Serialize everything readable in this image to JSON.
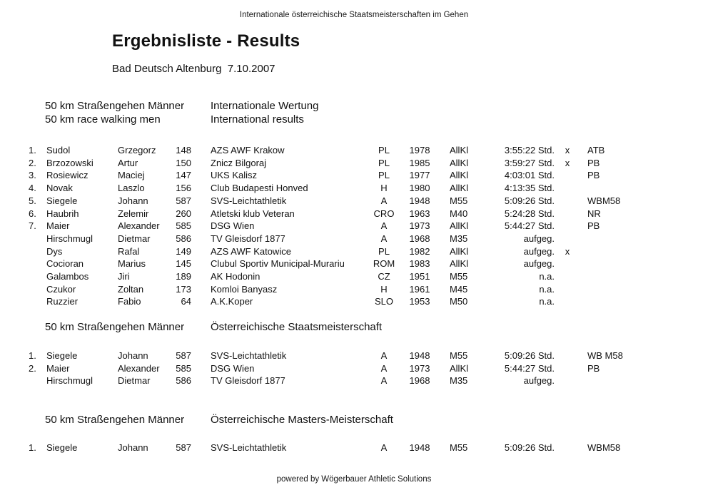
{
  "page": {
    "header": "Internationale österreichische Staatsmeisterschaften im Gehen",
    "title": "Ergebnisliste - Results",
    "subtitle": "Bad Deutsch Altenburg  7.10.2007",
    "footer": "powered by Wögerbauer Athletic Solutions"
  },
  "sections": [
    {
      "heading_left": [
        "50 km Straßengehen Männer",
        "50 km race walking men"
      ],
      "heading_right": [
        "Internationale Wertung",
        "International results"
      ],
      "rows": [
        {
          "pos": "1.",
          "lastname": "Sudol",
          "firstname": "Grzegorz",
          "bib": "148",
          "club": "AZS AWF Krakow",
          "nat": "PL",
          "year": "1978",
          "class": "AllKl",
          "result": "3:55:22 Std.",
          "mark": "x",
          "note": "ATB"
        },
        {
          "pos": "2.",
          "lastname": "Brzozowski",
          "firstname": "Artur",
          "bib": "150",
          "club": "Znicz Bilgoraj",
          "nat": "PL",
          "year": "1985",
          "class": "AllKl",
          "result": "3:59:27 Std.",
          "mark": "x",
          "note": "PB"
        },
        {
          "pos": "3.",
          "lastname": "Rosiewicz",
          "firstname": "Maciej",
          "bib": "147",
          "club": "UKS Kalisz",
          "nat": "PL",
          "year": "1977",
          "class": "AllKl",
          "result": "4:03:01 Std.",
          "mark": "",
          "note": "PB"
        },
        {
          "pos": "4.",
          "lastname": "Novak",
          "firstname": "Laszlo",
          "bib": "156",
          "club": "Club Budapesti Honved",
          "nat": "H",
          "year": "1980",
          "class": "AllKl",
          "result": "4:13:35 Std.",
          "mark": "",
          "note": ""
        },
        {
          "pos": "5.",
          "lastname": "Siegele",
          "firstname": "Johann",
          "bib": "587",
          "club": "SVS-Leichtathletik",
          "nat": "A",
          "year": "1948",
          "class": "M55",
          "result": "5:09:26 Std.",
          "mark": "",
          "note": "WBM58"
        },
        {
          "pos": "6.",
          "lastname": "Haubrih",
          "firstname": "Zelemir",
          "bib": "260",
          "club": "Atletski klub Veteran",
          "nat": "CRO",
          "year": "1963",
          "class": "M40",
          "result": "5:24:28 Std.",
          "mark": "",
          "note": "NR"
        },
        {
          "pos": "7.",
          "lastname": "Maier",
          "firstname": "Alexander",
          "bib": "585",
          "club": "DSG Wien",
          "nat": "A",
          "year": "1973",
          "class": "AllKl",
          "result": "5:44:27 Std.",
          "mark": "",
          "note": "PB"
        },
        {
          "pos": "",
          "lastname": "Hirschmugl",
          "firstname": "Dietmar",
          "bib": "586",
          "club": "TV Gleisdorf 1877",
          "nat": "A",
          "year": "1968",
          "class": "M35",
          "result": "aufgeg.",
          "mark": "",
          "note": ""
        },
        {
          "pos": "",
          "lastname": "Dys",
          "firstname": "Rafal",
          "bib": "149",
          "club": "AZS AWF Katowice",
          "nat": "PL",
          "year": "1982",
          "class": "AllKl",
          "result": "aufgeg.",
          "mark": "x",
          "note": ""
        },
        {
          "pos": "",
          "lastname": "Cocioran",
          "firstname": "Marius",
          "bib": "145",
          "club": "Clubul Sportiv Municipal-Murariu",
          "nat": "ROM",
          "year": "1983",
          "class": "AllKl",
          "result": "aufgeg.",
          "mark": "",
          "note": ""
        },
        {
          "pos": "",
          "lastname": "Galambos",
          "firstname": "Jiri",
          "bib": "189",
          "club": "AK Hodonin",
          "nat": "CZ",
          "year": "1951",
          "class": "M55",
          "result": "n.a.",
          "mark": "",
          "note": ""
        },
        {
          "pos": "",
          "lastname": "Czukor",
          "firstname": "Zoltan",
          "bib": "173",
          "club": "Komloi Banyasz",
          "nat": "H",
          "year": "1961",
          "class": "M45",
          "result": "n.a.",
          "mark": "",
          "note": ""
        },
        {
          "pos": "",
          "lastname": "Ruzzier",
          "firstname": "Fabio",
          "bib": "64",
          "club": "A.K.Koper",
          "nat": "SLO",
          "year": "1953",
          "class": "M50",
          "result": "n.a.",
          "mark": "",
          "note": ""
        }
      ]
    },
    {
      "heading_left": [
        "50 km Straßengehen Männer"
      ],
      "heading_right": [
        "Österreichische Staatsmeisterschaft"
      ],
      "rows": [
        {
          "pos": "1.",
          "lastname": "Siegele",
          "firstname": "Johann",
          "bib": "587",
          "club": "SVS-Leichtathletik",
          "nat": "A",
          "year": "1948",
          "class": "M55",
          "result": "5:09:26 Std.",
          "mark": "",
          "note": "WB M58"
        },
        {
          "pos": "2.",
          "lastname": "Maier",
          "firstname": "Alexander",
          "bib": "585",
          "club": "DSG Wien",
          "nat": "A",
          "year": "1973",
          "class": "AllKl",
          "result": "5:44:27 Std.",
          "mark": "",
          "note": "PB"
        },
        {
          "pos": "",
          "lastname": "Hirschmugl",
          "firstname": "Dietmar",
          "bib": "586",
          "club": "TV Gleisdorf 1877",
          "nat": "A",
          "year": "1968",
          "class": "M35",
          "result": "aufgeg.",
          "mark": "",
          "note": ""
        }
      ]
    },
    {
      "heading_left": [
        "50 km Straßengehen Männer"
      ],
      "heading_right": [
        "Österreichische Masters-Meisterschaft"
      ],
      "rows": [
        {
          "pos": "1.",
          "lastname": "Siegele",
          "firstname": "Johann",
          "bib": "587",
          "club": "SVS-Leichtathletik",
          "nat": "A",
          "year": "1948",
          "class": "M55",
          "result": "5:09:26 Std.",
          "mark": "",
          "note": "WBM58"
        }
      ]
    }
  ]
}
